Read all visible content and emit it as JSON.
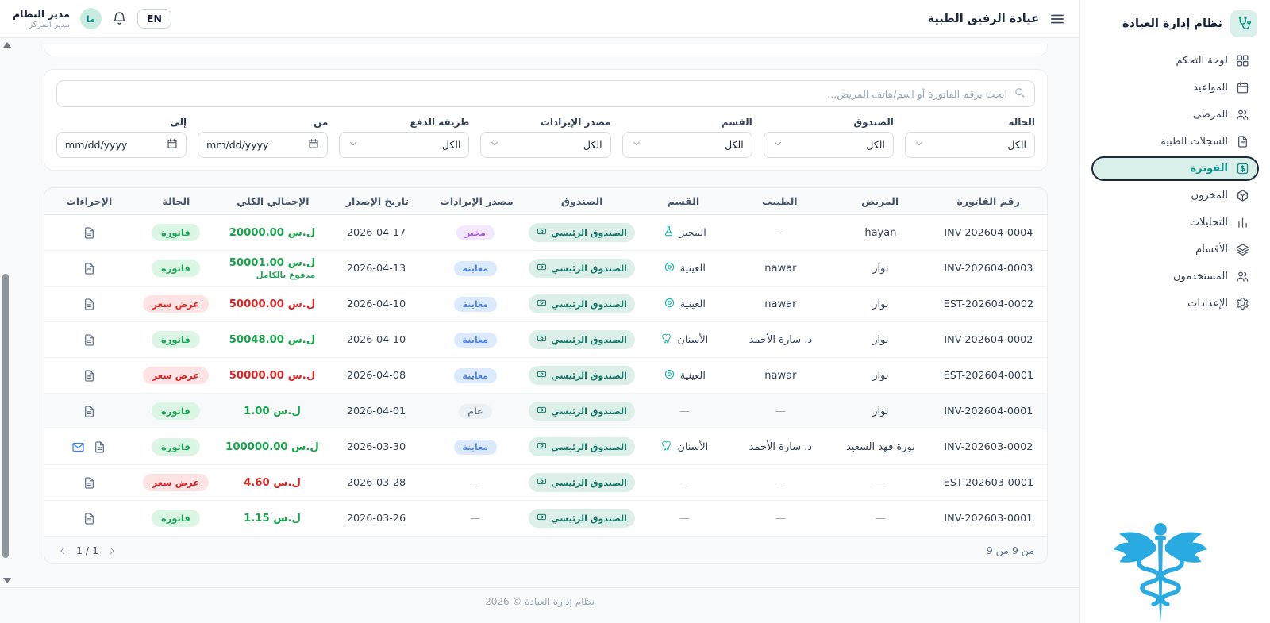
{
  "app": {
    "footer": "نظام إدارة العيادة © 2026"
  },
  "colors": {
    "primary_teal": "#0d9488",
    "active_item_bg": "#d9efe9",
    "money_green": "#16a34a",
    "money_red": "#dc2626",
    "badge_blue": "#4f83ee",
    "badge_purple": "#a657e8",
    "caduceus_blue": "#29abe2"
  },
  "sidebar": {
    "title": "نظام إدارة العيادة",
    "logo_icon": "stethoscope-icon",
    "items": [
      {
        "name": "dashboard",
        "label": "لوحة التحكم",
        "icon": "dashboard-icon",
        "active": false
      },
      {
        "name": "appointments",
        "label": "المواعيد",
        "icon": "calendar-icon",
        "active": false
      },
      {
        "name": "patients",
        "label": "المرضى",
        "icon": "patients-icon",
        "active": false
      },
      {
        "name": "medical-records",
        "label": "السجلات الطبية",
        "icon": "medical-records-icon",
        "active": false
      },
      {
        "name": "billing",
        "label": "الفوترة",
        "icon": "billing-icon",
        "active": true
      },
      {
        "name": "inventory",
        "label": "المخزون",
        "icon": "inventory-icon",
        "active": false
      },
      {
        "name": "analytics",
        "label": "التحليلات",
        "icon": "analytics-icon",
        "active": false
      },
      {
        "name": "departments",
        "label": "الأقسام",
        "icon": "departments-icon",
        "active": false
      },
      {
        "name": "users",
        "label": "المستخدمون",
        "icon": "users-icon",
        "active": false
      },
      {
        "name": "settings",
        "label": "الإعدادات",
        "icon": "settings-icon",
        "active": false
      }
    ]
  },
  "topbar": {
    "clinic_name": "عيادة الرفيق الطبية",
    "language_button": "EN",
    "user": {
      "name": "مدير النظام",
      "role": "مدير المركز",
      "avatar_initials": "ما"
    }
  },
  "search": {
    "placeholder": "ابحث برقم الفاتورة أو اسم/هاتف المريض..."
  },
  "filters": [
    {
      "name": "status",
      "label": "الحالة",
      "type": "select",
      "value": "الكل"
    },
    {
      "name": "cashbox",
      "label": "الصندوق",
      "type": "select",
      "value": "الكل"
    },
    {
      "name": "department",
      "label": "القسم",
      "type": "select",
      "value": "الكل"
    },
    {
      "name": "revenue-source",
      "label": "مصدر الإيرادات",
      "type": "select",
      "value": "الكل"
    },
    {
      "name": "payment-method",
      "label": "طريقة الدفع",
      "type": "select",
      "value": "الكل"
    },
    {
      "name": "from",
      "label": "من",
      "type": "date",
      "value": "mm/dd/yyyy"
    },
    {
      "name": "to",
      "label": "إلى",
      "type": "date",
      "value": "mm/dd/yyyy"
    }
  ],
  "table": {
    "columns": [
      "رقم الفاتورة",
      "المريض",
      "الطبيب",
      "القسم",
      "الصندوق",
      "مصدر الإيرادات",
      "تاريخ الإصدار",
      "الإجمالي الكلي",
      "الحالة",
      "الإجراءات"
    ],
    "rows": [
      {
        "invoice": "INV-202604-0004",
        "patient": "hayan",
        "doctor": "—",
        "department": "المخبر",
        "department_icon": "flask-icon",
        "cashbox": "الصندوق الرئيسي",
        "source": "مخبر",
        "source_color": "purple",
        "date": "2026-04-17",
        "total": "20000.00 ل.س",
        "total_color": "green",
        "total_note": "",
        "status": "فاتورة",
        "status_color": "green"
      },
      {
        "invoice": "INV-202604-0003",
        "patient": "نوار",
        "doctor": "nawar",
        "department": "العينية",
        "department_icon": "eye-icon",
        "cashbox": "الصندوق الرئيسي",
        "source": "معاينة",
        "source_color": "blue",
        "date": "2026-04-13",
        "total": "50001.00 ل.س",
        "total_color": "green",
        "total_note": "مدفوع بالكامل",
        "status": "فاتورة",
        "status_color": "green"
      },
      {
        "invoice": "EST-202604-0002",
        "patient": "نوار",
        "doctor": "nawar",
        "department": "العينية",
        "department_icon": "eye-icon",
        "cashbox": "الصندوق الرئيسي",
        "source": "معاينة",
        "source_color": "blue",
        "date": "2026-04-10",
        "total": "50000.00 ل.س",
        "total_color": "red",
        "total_note": "",
        "status": "عرض سعر",
        "status_color": "red"
      },
      {
        "invoice": "INV-202604-0002",
        "patient": "نوار",
        "doctor": "د. سارة الأحمد",
        "department": "الأسنان",
        "department_icon": "tooth-icon",
        "cashbox": "الصندوق الرئيسي",
        "source": "معاينة",
        "source_color": "blue",
        "date": "2026-04-10",
        "total": "50048.00 ل.س",
        "total_color": "green",
        "total_note": "",
        "status": "فاتورة",
        "status_color": "green"
      },
      {
        "invoice": "EST-202604-0001",
        "patient": "نوار",
        "doctor": "nawar",
        "department": "العينية",
        "department_icon": "eye-icon",
        "cashbox": "الصندوق الرئيسي",
        "source": "معاينة",
        "source_color": "blue",
        "date": "2026-04-08",
        "total": "50000.00 ل.س",
        "total_color": "red",
        "total_note": "",
        "status": "عرض سعر",
        "status_color": "red"
      },
      {
        "invoice": "INV-202604-0001",
        "patient": "نوار",
        "doctor": "—",
        "department": "—",
        "department_icon": null,
        "cashbox": "الصندوق الرئيسي",
        "source": "عام",
        "source_color": "gray",
        "date": "2026-04-01",
        "total": "1.00 ل.س",
        "total_color": "green",
        "total_note": "",
        "status": "فاتورة",
        "status_color": "green",
        "highlighted": true
      },
      {
        "invoice": "INV-202603-0002",
        "patient": "نورة فهد السعيد",
        "doctor": "د. سارة الأحمد",
        "department": "الأسنان",
        "department_icon": "tooth-icon",
        "cashbox": "الصندوق الرئيسي",
        "source": "معاينة",
        "source_color": "blue",
        "date": "2026-03-30",
        "total": "100000.00 ل.س",
        "total_color": "green",
        "total_note": "",
        "status": "فاتورة",
        "status_color": "green",
        "has_mail": true
      },
      {
        "invoice": "EST-202603-0001",
        "patient": "—",
        "doctor": "—",
        "department": "—",
        "department_icon": null,
        "cashbox": "الصندوق الرئيسي",
        "source": "—",
        "source_color": null,
        "date": "2026-03-28",
        "total": "4.60 ل.س",
        "total_color": "red",
        "total_note": "",
        "status": "عرض سعر",
        "status_color": "red"
      },
      {
        "invoice": "INV-202603-0001",
        "patient": "—",
        "doctor": "—",
        "department": "—",
        "department_icon": null,
        "cashbox": "الصندوق الرئيسي",
        "source": "—",
        "source_color": null,
        "date": "2026-03-26",
        "total": "1.15 ل.س",
        "total_color": "green",
        "total_note": "",
        "status": "فاتورة",
        "status_color": "green"
      }
    ]
  },
  "pagination": {
    "page_indicator": "1 / 1",
    "range_text": "من 9 من 9"
  }
}
